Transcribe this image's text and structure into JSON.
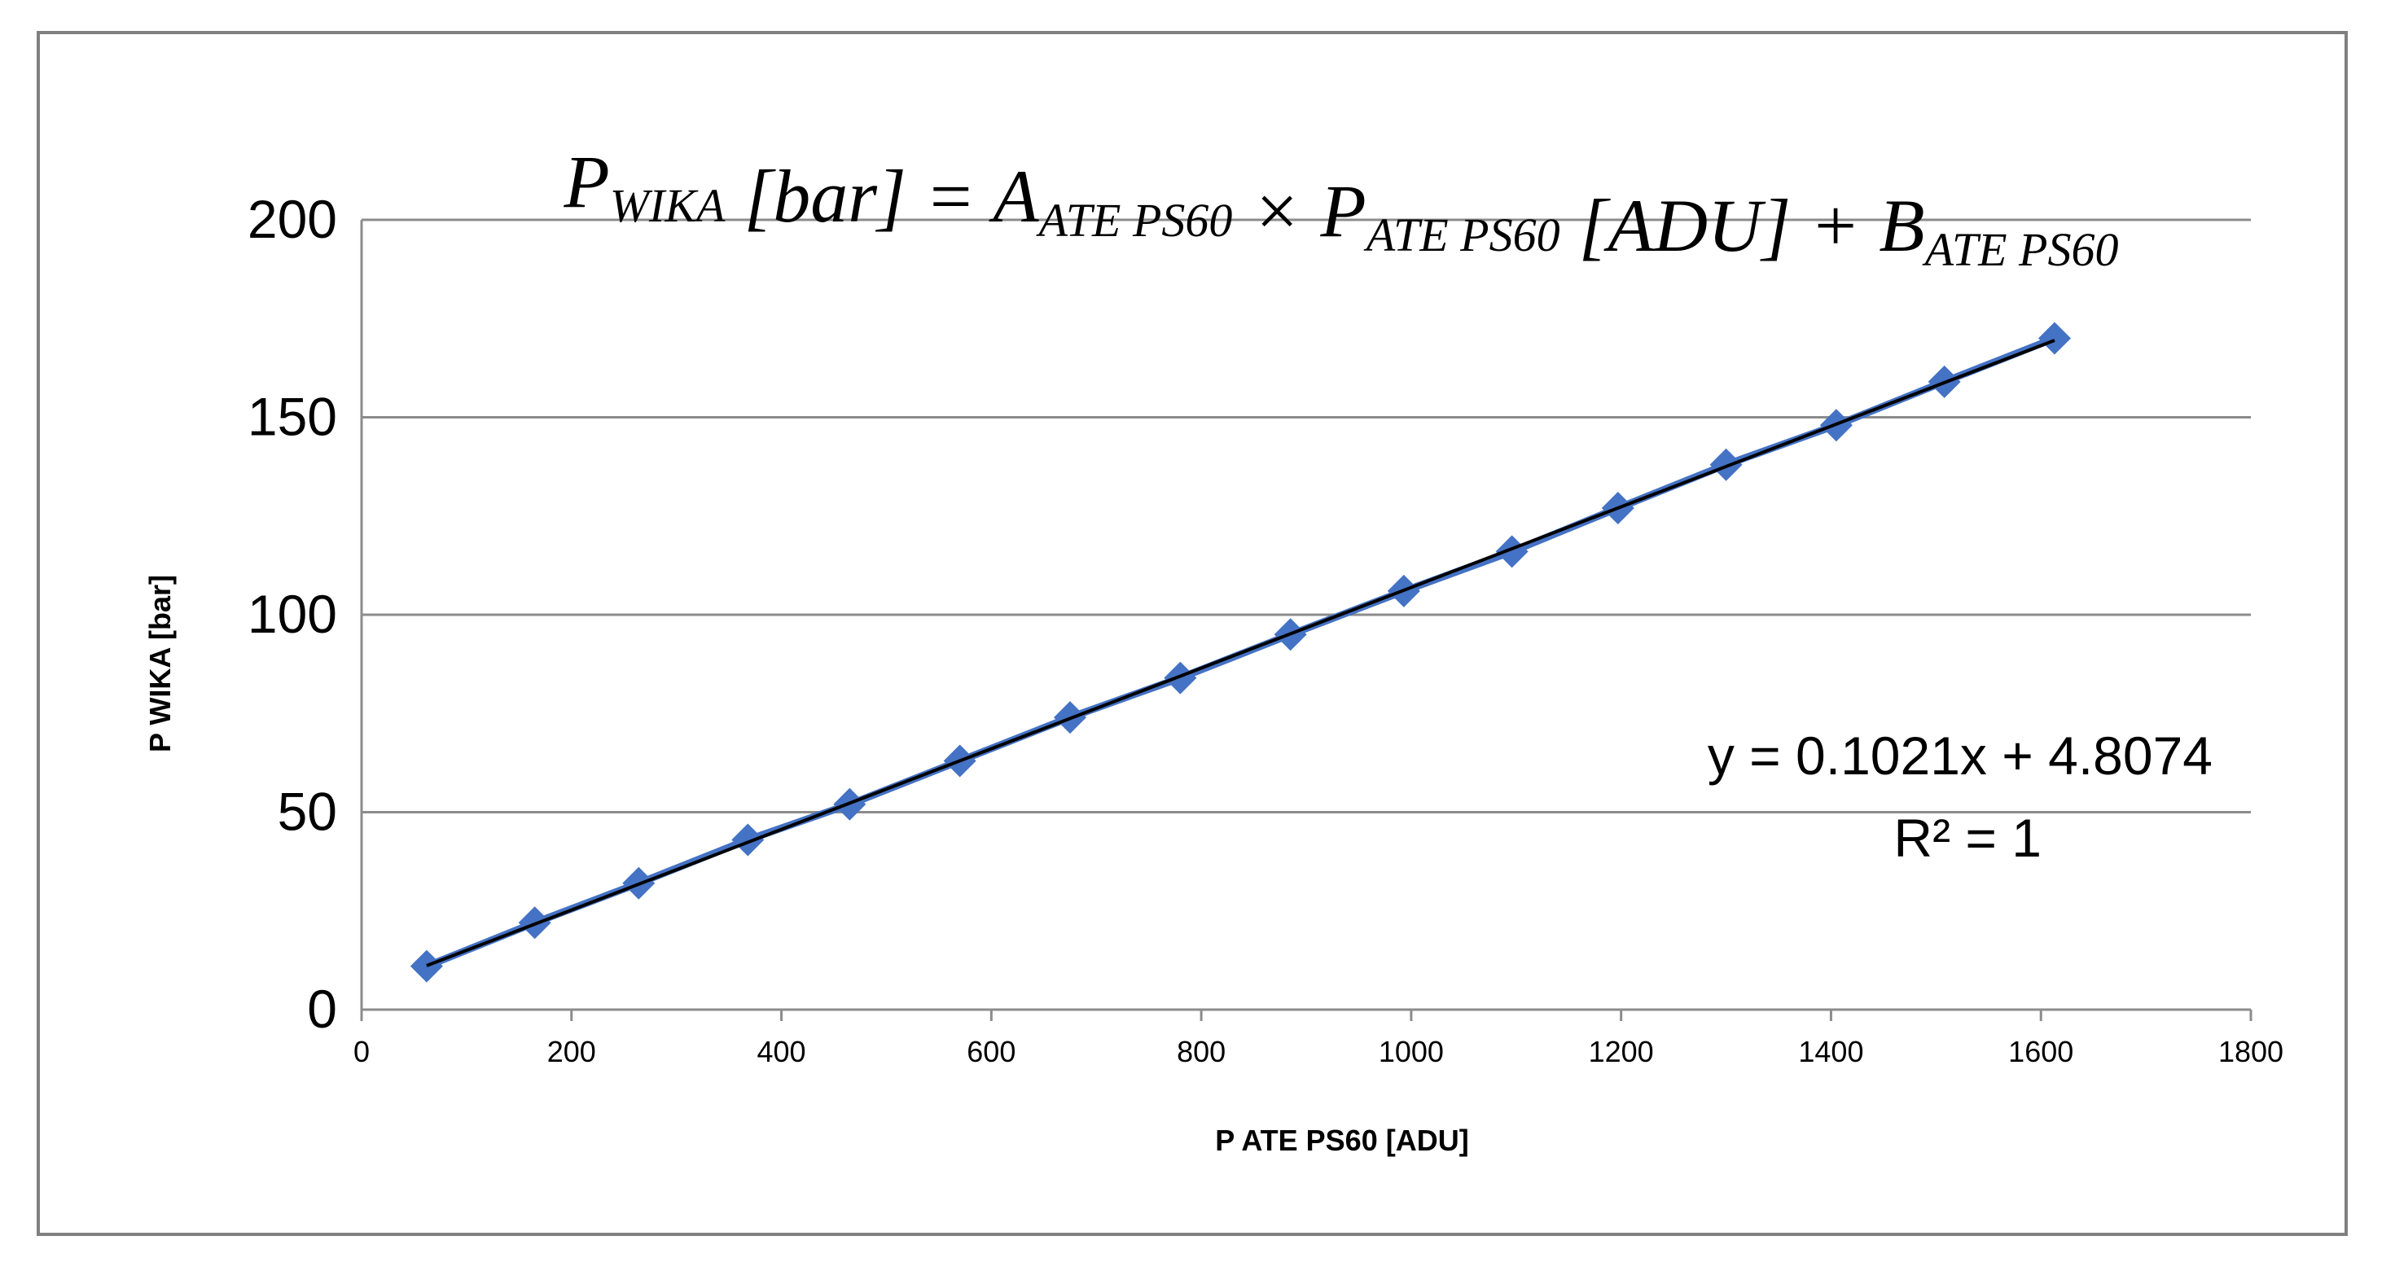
{
  "chart_data": {
    "type": "scatter",
    "title_formula": {
      "parts": [
        {
          "text": "P",
          "sub": "WIKA"
        },
        {
          "text": " [bar] = ",
          "sub": ""
        },
        {
          "text": "A",
          "sub": "ATE PS60"
        },
        {
          "text": " × ",
          "sub": ""
        },
        {
          "text": "P",
          "sub": "ATE PS60"
        },
        {
          "text": " [ADU] + ",
          "sub": ""
        },
        {
          "text": "B",
          "sub": "ATE PS60"
        }
      ]
    },
    "xlabel": "P ATE PS60 [ADU]",
    "ylabel": "P WIKA [bar]",
    "xlim": [
      0,
      1800
    ],
    "ylim": [
      0,
      200
    ],
    "x_ticks": [
      "0",
      "200",
      "400",
      "600",
      "800",
      "1000",
      "1200",
      "1400",
      "1600",
      "1800"
    ],
    "y_ticks": [
      "0",
      "50",
      "100",
      "150",
      "200"
    ],
    "grid": "horizontal",
    "series": [
      {
        "marker": "diamond",
        "color": "#4472C4",
        "x": [
          62,
          165,
          264,
          368,
          465,
          570,
          675,
          780,
          885,
          993,
          1096,
          1197,
          1300,
          1405,
          1508,
          1613
        ],
        "y": [
          11,
          22,
          32,
          43,
          52,
          63,
          74,
          84,
          95,
          106,
          116,
          127,
          138,
          148,
          159,
          170
        ]
      }
    ],
    "trendline": {
      "type": "linear",
      "color": "#000000",
      "slope": 0.1021,
      "intercept": 4.8074,
      "equation_label": "y = 0.1021x + 4.8074",
      "r2_label": "R² = 1"
    }
  }
}
